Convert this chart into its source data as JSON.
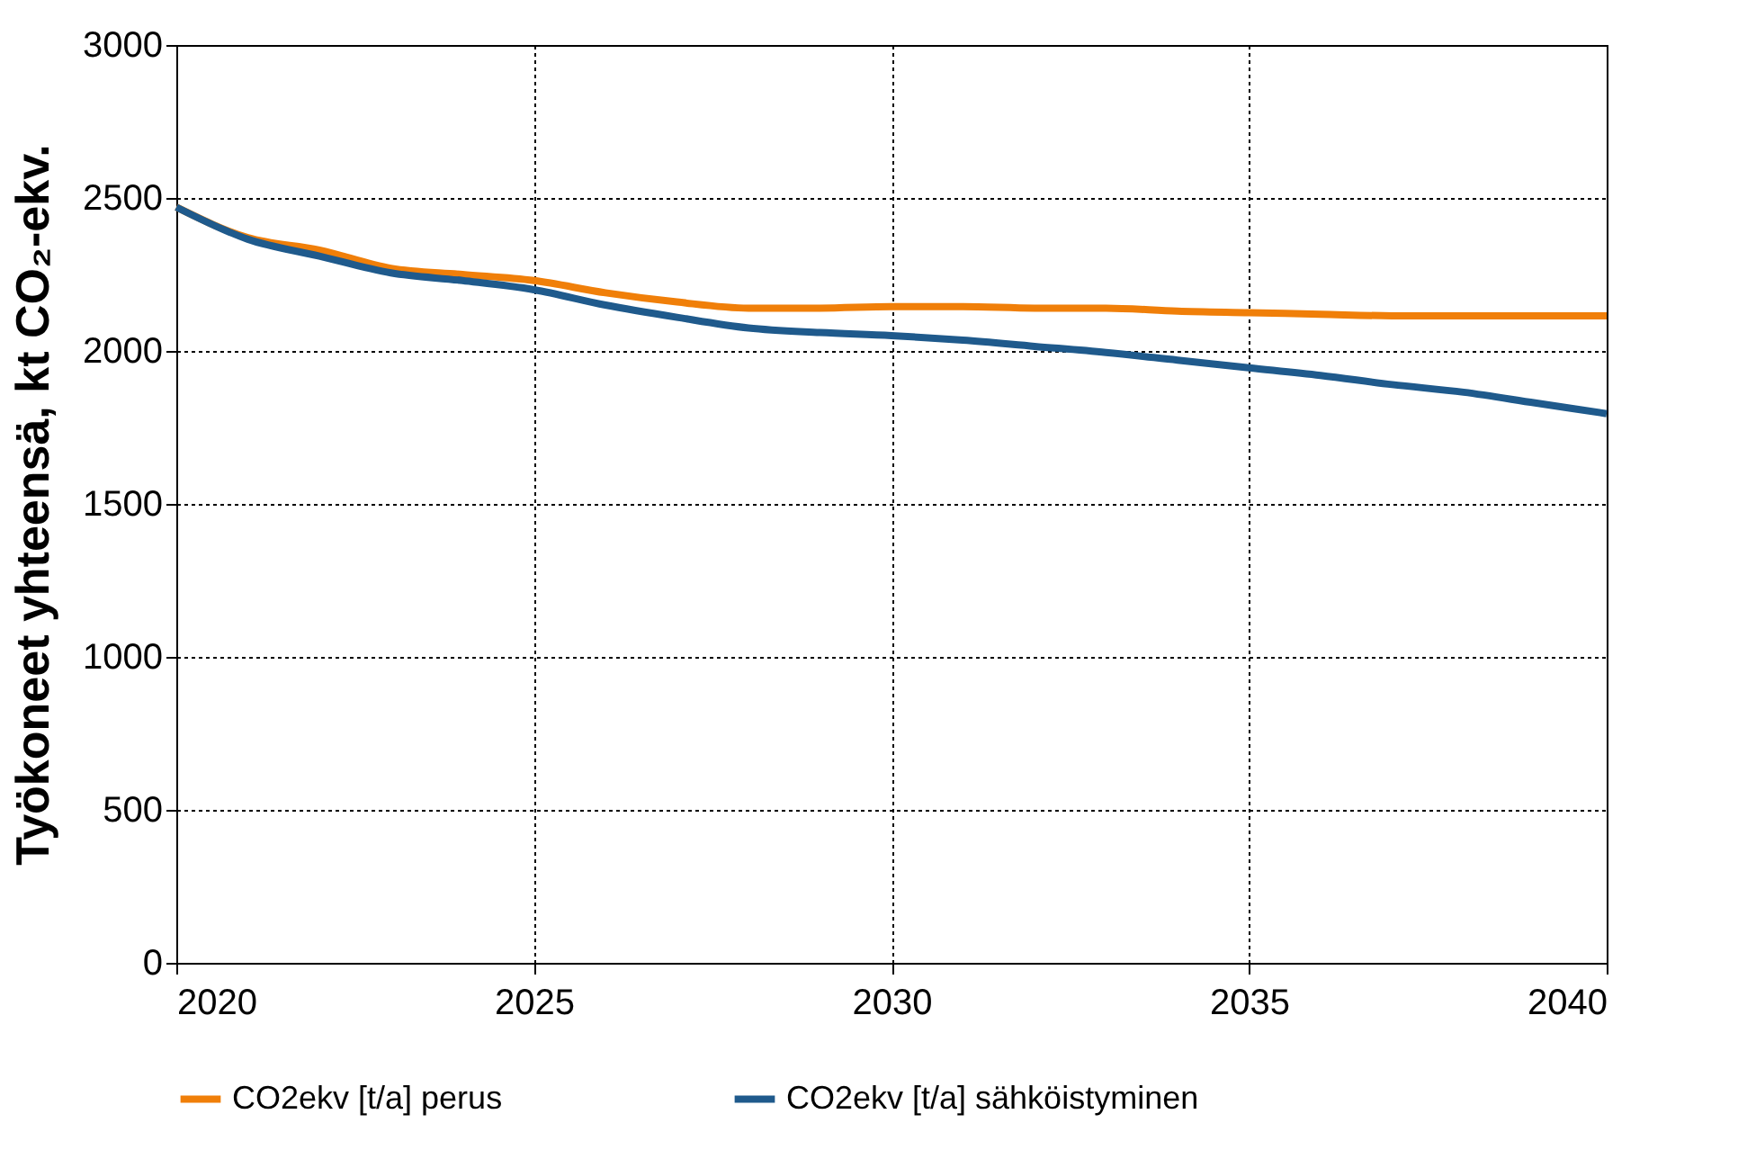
{
  "chart_data": {
    "type": "line",
    "ylabel": "Työkoneet yhteensä, kt CO₂-ekv.",
    "x": [
      2020,
      2021,
      2022,
      2023,
      2024,
      2025,
      2026,
      2027,
      2028,
      2029,
      2030,
      2031,
      2032,
      2033,
      2034,
      2035,
      2036,
      2037,
      2038,
      2039,
      2040
    ],
    "series": [
      {
        "name": "CO2ekv [t/a] perus",
        "color": "#f07f09",
        "values": [
          2470,
          2370,
          2330,
          2270,
          2250,
          2230,
          2190,
          2160,
          2140,
          2140,
          2145,
          2145,
          2140,
          2140,
          2130,
          2125,
          2120,
          2115,
          2115,
          2115,
          2115
        ]
      },
      {
        "name": "CO2ekv [t/a] sähköistyminen",
        "color": "#1f5a8c",
        "values": [
          2470,
          2365,
          2310,
          2255,
          2230,
          2200,
          2150,
          2110,
          2075,
          2060,
          2050,
          2035,
          2015,
          1995,
          1970,
          1945,
          1920,
          1890,
          1865,
          1830,
          1795
        ]
      }
    ],
    "xlim": [
      2020,
      2040
    ],
    "xticks": [
      2020,
      2025,
      2030,
      2035,
      2040
    ],
    "ylim": [
      0,
      3000
    ],
    "yticks": [
      0,
      500,
      1000,
      1500,
      2000,
      2500,
      3000
    ],
    "grid": true,
    "legend": "bottom",
    "marker": "none",
    "line_style": "solid"
  }
}
